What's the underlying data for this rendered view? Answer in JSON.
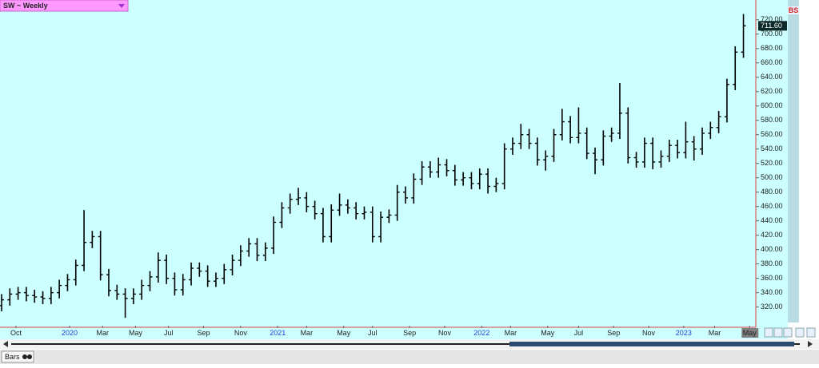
{
  "header": {
    "title": "SW ~ Weekly",
    "badge": "BS"
  },
  "chart_data": {
    "type": "ohlc",
    "x": [
      0,
      2,
      4,
      6,
      8,
      10,
      12,
      14,
      16,
      18,
      20,
      22,
      24,
      26,
      28,
      30,
      32,
      34,
      36,
      38,
      40,
      42,
      44,
      46,
      48,
      50,
      52,
      54,
      56,
      58,
      60,
      62,
      64,
      66,
      68,
      70,
      72,
      74,
      76,
      78,
      80,
      82,
      84,
      86,
      88,
      90,
      92,
      94,
      96,
      98,
      100,
      102,
      104,
      106,
      108,
      110,
      112,
      114,
      116,
      118,
      120,
      122,
      124,
      126,
      128,
      130,
      132,
      134,
      136,
      138,
      140,
      142,
      144,
      146,
      148,
      150,
      152,
      154,
      156,
      158,
      160,
      162,
      164,
      166,
      168,
      170,
      172,
      174,
      176,
      178,
      180
    ],
    "open": [
      322,
      330,
      338,
      340,
      336,
      334,
      332,
      340,
      350,
      358,
      378,
      410,
      418,
      365,
      343,
      338,
      332,
      338,
      350,
      362,
      385,
      360,
      344,
      358,
      374,
      370,
      356,
      360,
      372,
      385,
      398,
      408,
      392,
      402,
      438,
      458,
      470,
      472,
      460,
      450,
      418,
      455,
      462,
      458,
      450,
      452,
      418,
      445,
      448,
      480,
      472,
      498,
      515,
      508,
      518,
      510,
      497,
      500,
      492,
      505,
      488,
      492,
      540,
      548,
      560,
      548,
      525,
      530,
      560,
      578,
      556,
      562,
      534,
      525,
      558,
      562,
      590,
      528,
      522,
      548,
      522,
      530,
      545,
      535,
      550,
      540,
      562,
      570,
      585,
      630,
      675
    ],
    "high": [
      338,
      346,
      348,
      348,
      344,
      342,
      348,
      358,
      366,
      386,
      455,
      426,
      426,
      373,
      351,
      346,
      346,
      358,
      370,
      396,
      393,
      368,
      366,
      382,
      382,
      378,
      368,
      380,
      393,
      406,
      416,
      416,
      410,
      446,
      466,
      478,
      486,
      480,
      468,
      458,
      463,
      478,
      470,
      466,
      460,
      460,
      453,
      456,
      490,
      488,
      506,
      523,
      523,
      528,
      526,
      518,
      508,
      508,
      513,
      513,
      500,
      548,
      556,
      575,
      568,
      556,
      538,
      568,
      596,
      586,
      598,
      570,
      542,
      566,
      570,
      632,
      598,
      536,
      556,
      556,
      538,
      553,
      553,
      578,
      558,
      570,
      578,
      593,
      638,
      683,
      728
    ],
    "low": [
      314,
      322,
      330,
      328,
      326,
      324,
      324,
      332,
      342,
      350,
      370,
      402,
      357,
      335,
      330,
      305,
      324,
      330,
      342,
      354,
      352,
      336,
      336,
      350,
      362,
      348,
      348,
      352,
      364,
      377,
      390,
      384,
      384,
      394,
      430,
      450,
      462,
      452,
      442,
      410,
      410,
      447,
      450,
      442,
      442,
      410,
      410,
      437,
      440,
      464,
      464,
      490,
      500,
      500,
      502,
      489,
      489,
      484,
      484,
      478,
      480,
      484,
      532,
      540,
      540,
      517,
      510,
      522,
      552,
      548,
      548,
      526,
      505,
      517,
      550,
      554,
      520,
      514,
      514,
      512,
      514,
      522,
      527,
      527,
      524,
      532,
      554,
      562,
      577,
      622,
      667
    ],
    "close": [
      330,
      338,
      340,
      336,
      334,
      332,
      340,
      350,
      358,
      378,
      410,
      418,
      365,
      343,
      338,
      332,
      338,
      350,
      362,
      385,
      360,
      344,
      358,
      374,
      370,
      356,
      360,
      372,
      385,
      398,
      408,
      392,
      402,
      438,
      458,
      470,
      472,
      460,
      450,
      418,
      455,
      462,
      458,
      450,
      452,
      418,
      445,
      448,
      480,
      472,
      498,
      515,
      508,
      518,
      510,
      497,
      500,
      492,
      505,
      488,
      492,
      540,
      548,
      560,
      548,
      525,
      530,
      560,
      578,
      556,
      562,
      534,
      525,
      558,
      562,
      590,
      528,
      522,
      548,
      522,
      530,
      545,
      535,
      550,
      540,
      562,
      570,
      585,
      630,
      675,
      711.6
    ],
    "last_label": "711.60",
    "color": "#000000",
    "xlim": [
      0,
      183
    ],
    "ylim": [
      294,
      742
    ],
    "xticks": [
      {
        "value": 3.5,
        "label": "Oct"
      },
      {
        "value": 16.5,
        "label": "2020"
      },
      {
        "value": 24.5,
        "label": "Mar"
      },
      {
        "value": 32.5,
        "label": "May"
      },
      {
        "value": 40.5,
        "label": "Jul"
      },
      {
        "value": 49,
        "label": "Sep"
      },
      {
        "value": 58,
        "label": "Nov"
      },
      {
        "value": 67,
        "label": "2021"
      },
      {
        "value": 74,
        "label": "Mar"
      },
      {
        "value": 83,
        "label": "May"
      },
      {
        "value": 90,
        "label": "Jul"
      },
      {
        "value": 99,
        "label": "Sep"
      },
      {
        "value": 107.5,
        "label": "Nov"
      },
      {
        "value": 116.5,
        "label": "2022"
      },
      {
        "value": 123.5,
        "label": "Mar"
      },
      {
        "value": 132.5,
        "label": "May"
      },
      {
        "value": 140,
        "label": "Jul"
      },
      {
        "value": 148.5,
        "label": "Sep"
      },
      {
        "value": 157,
        "label": "Nov"
      },
      {
        "value": 165.5,
        "label": "2023"
      },
      {
        "value": 173,
        "label": "Mar"
      },
      {
        "value": 181.5,
        "label": "May"
      }
    ],
    "yticks": [
      {
        "value": 320,
        "label": "320.00"
      },
      {
        "value": 340,
        "label": "340.00"
      },
      {
        "value": 360,
        "label": "360.00"
      },
      {
        "value": 380,
        "label": "380.00"
      },
      {
        "value": 400,
        "label": "400.00"
      },
      {
        "value": 420,
        "label": "420.00"
      },
      {
        "value": 440,
        "label": "440.00"
      },
      {
        "value": 460,
        "label": "460.00"
      },
      {
        "value": 480,
        "label": "480.00"
      },
      {
        "value": 500,
        "label": "500.00"
      },
      {
        "value": 520,
        "label": "520.00"
      },
      {
        "value": 540,
        "label": "540.00"
      },
      {
        "value": 560,
        "label": "560.00"
      },
      {
        "value": 580,
        "label": "580.00"
      },
      {
        "value": 600,
        "label": "600.00"
      },
      {
        "value": 620,
        "label": "620.00"
      },
      {
        "value": 640,
        "label": "640.00"
      },
      {
        "value": 660,
        "label": "660.00"
      },
      {
        "value": 680,
        "label": "680.00"
      },
      {
        "value": 700,
        "label": "700.00"
      },
      {
        "value": 720,
        "label": "720.00"
      }
    ]
  },
  "footer": {
    "tab": "Bars"
  }
}
